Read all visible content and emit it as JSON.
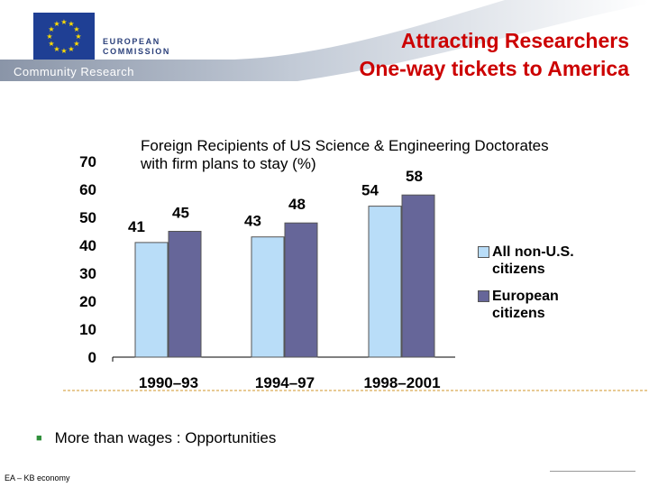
{
  "header": {
    "org_line1": "EUROPEAN",
    "org_line2": "COMMISSION",
    "community": "Community Research"
  },
  "title": {
    "line1": "Attracting Researchers",
    "line2": "One-way tickets to America"
  },
  "chart_data": {
    "type": "bar",
    "title_line1": "Foreign Recipients of US Science & Engineering Doctorates",
    "title_line2": "with firm plans to stay (%)",
    "categories": [
      "1990–93",
      "1994–97",
      "1998–2001"
    ],
    "series": [
      {
        "name": "All non-U.S. citizens",
        "name_line1": "All non-U.S.",
        "name_line2": "citizens",
        "values": [
          41,
          43,
          54
        ],
        "color": "#b9ddf8"
      },
      {
        "name": "European citizens",
        "name_line1": "European",
        "name_line2": "citizens",
        "values": [
          45,
          48,
          58
        ],
        "color": "#666699"
      }
    ],
    "ylim": [
      0,
      70
    ],
    "yticks": [
      "0",
      "10",
      "20",
      "30",
      "40",
      "50",
      "60",
      "70"
    ],
    "grid": false,
    "legend": "right"
  },
  "bullet": "More than wages : Opportunities",
  "footer": "EA – KB economy"
}
